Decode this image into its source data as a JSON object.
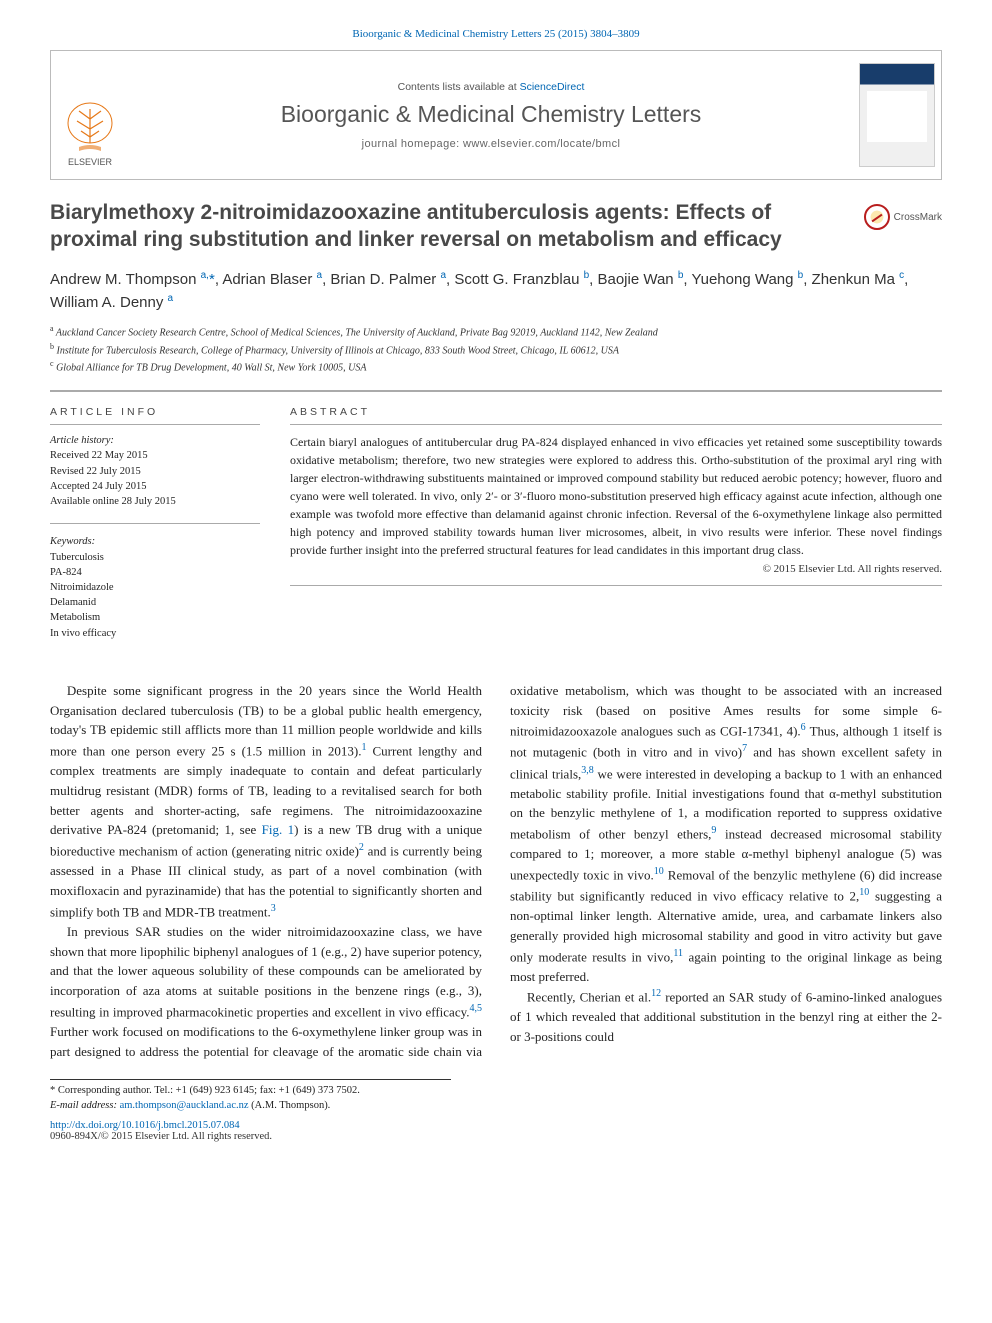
{
  "citation": "Bioorganic & Medicinal Chemistry Letters 25 (2015) 3804–3809",
  "header": {
    "contents_prefix": "Contents lists available at ",
    "contents_link": "ScienceDirect",
    "journal_name": "Bioorganic & Medicinal Chemistry Letters",
    "homepage_prefix": "journal homepage: ",
    "homepage_url": "www.elsevier.com/locate/bmcl",
    "elsevier_alt": "Elsevier",
    "cover_bg": "#183d6b"
  },
  "crossmark_label": "CrossMark",
  "title": "Biarylmethoxy 2-nitroimidazooxazine antituberculosis agents: Effects of proximal ring substitution and linker reversal on metabolism and efficacy",
  "authors_html": "Andrew M. Thompson <sup>a,</sup><span class='star'>*</span>, Adrian Blaser <sup>a</sup>, Brian D. Palmer <sup>a</sup>, Scott G. Franzblau <sup>b</sup>, Baojie Wan <sup>b</sup>, Yuehong Wang <sup>b</sup>, Zhenkun Ma <sup>c</sup>, William A. Denny <sup>a</sup>",
  "affiliations": [
    "a Auckland Cancer Society Research Centre, School of Medical Sciences, The University of Auckland, Private Bag 92019, Auckland 1142, New Zealand",
    "b Institute for Tuberculosis Research, College of Pharmacy, University of Illinois at Chicago, 833 South Wood Street, Chicago, IL 60612, USA",
    "c Global Alliance for TB Drug Development, 40 Wall St, New York 10005, USA"
  ],
  "article_info": {
    "heading": "ARTICLE INFO",
    "history_label": "Article history:",
    "history": [
      "Received 22 May 2015",
      "Revised 22 July 2015",
      "Accepted 24 July 2015",
      "Available online 28 July 2015"
    ],
    "keywords_label": "Keywords:",
    "keywords": [
      "Tuberculosis",
      "PA-824",
      "Nitroimidazole",
      "Delamanid",
      "Metabolism",
      "In vivo efficacy"
    ]
  },
  "abstract": {
    "heading": "ABSTRACT",
    "text": "Certain biaryl analogues of antitubercular drug PA-824 displayed enhanced in vivo efficacies yet retained some susceptibility towards oxidative metabolism; therefore, two new strategies were explored to address this. Ortho-substitution of the proximal aryl ring with larger electron-withdrawing substituents maintained or improved compound stability but reduced aerobic potency; however, fluoro and cyano were well tolerated. In vivo, only 2′- or 3′-fluoro mono-substitution preserved high efficacy against acute infection, although one example was twofold more effective than delamanid against chronic infection. Reversal of the 6-oxymethylene linkage also permitted high potency and improved stability towards human liver microsomes, albeit, in vivo results were inferior. These novel findings provide further insight into the preferred structural features for lead candidates in this important drug class.",
    "copyright": "© 2015 Elsevier Ltd. All rights reserved."
  },
  "body": {
    "p1": "Despite some significant progress in the 20 years since the World Health Organisation declared tuberculosis (TB) to be a global public health emergency, today's TB epidemic still afflicts more than 11 million people worldwide and kills more than one person every 25 s (1.5 million in 2013).",
    "p1b": " Current lengthy and complex treatments are simply inadequate to contain and defeat particularly multidrug resistant (MDR) forms of TB, leading to a revitalised search for both better agents and shorter-acting, safe regimens. The nitroimidazooxazine derivative PA-824 (pretomanid; 1, see ",
    "p1c": ") is a new TB drug with a unique bioreductive mechanism of action (generating nitric oxide)",
    "p1d": " and is currently being assessed in a Phase III clinical study, as part of a novel combination (with moxifloxacin and pyrazinamide) that has the potential to significantly shorten and simplify both TB and MDR-TB treatment.",
    "p2": "In previous SAR studies on the wider nitroimidazooxazine class, we have shown that more lipophilic biphenyl analogues of 1 (e.g., 2) have superior potency, and that the lower aqueous solubility of these compounds can be ameliorated by incorporation of aza atoms at suitable positions in the benzene rings (e.g., 3), resulting in improved pharmacokinetic properties and excellent in vivo efficacy.",
    "p2b": " Further work focused on modifications to the 6-oxymethylene linker group was in part designed to address the potential for cleavage of the aromatic side chain via oxidative metabolism, which was thought to be associated with an increased toxicity risk (based on positive Ames results for some simple 6-nitroimidazooxazole analogues such as CGI-17341, 4).",
    "p2c": " Thus, although 1 itself is not mutagenic (both in vitro and in vivo)",
    "p2d": " and has shown excellent safety in clinical trials,",
    "p2e": " we were interested in developing a backup to 1 with an enhanced metabolic stability profile. Initial investigations found that α-methyl substitution on the benzylic methylene of 1, a modification reported to suppress oxidative metabolism of other benzyl ethers,",
    "p2f": " instead decreased microsomal stability compared to 1; moreover, a more stable α-methyl biphenyl analogue (5) was unexpectedly toxic in vivo.",
    "p2g": " Removal of the benzylic methylene (6) did increase stability but significantly reduced in vivo efficacy relative to 2,",
    "p2h": " suggesting a non-optimal linker length. Alternative amide, urea, and carbamate linkers also generally provided high microsomal stability and good in vitro activity but gave only moderate results in vivo,",
    "p2i": " again pointing to the original linkage as being most preferred.",
    "p3a": "Recently, Cherian et al.",
    "p3b": " reported an SAR study of 6-amino-linked analogues of 1 which revealed that additional substitution in the benzyl ring at either the 2- or 3-positions could",
    "fig1_label": "Fig. 1",
    "refs": {
      "r1": "1",
      "r2": "2",
      "r3": "3",
      "r45": "4,5",
      "r6": "6",
      "r7": "7",
      "r38": "3,8",
      "r9": "9",
      "r10": "10",
      "r11": "11",
      "r12": "12"
    }
  },
  "footer": {
    "corr_label": "* Corresponding author. Tel.: +1 (649) 923 6145; fax: +1 (649) 373 7502.",
    "email_label": "E-mail address: ",
    "email": "am.thompson@auckland.ac.nz",
    "email_who": " (A.M. Thompson).",
    "doi": "http://dx.doi.org/10.1016/j.bmcl.2015.07.084",
    "issn": "0960-894X/© 2015 Elsevier Ltd. All rights reserved."
  },
  "colors": {
    "link": "#0066b3",
    "rule": "#aaaaaa",
    "title_gray": "#494949"
  }
}
